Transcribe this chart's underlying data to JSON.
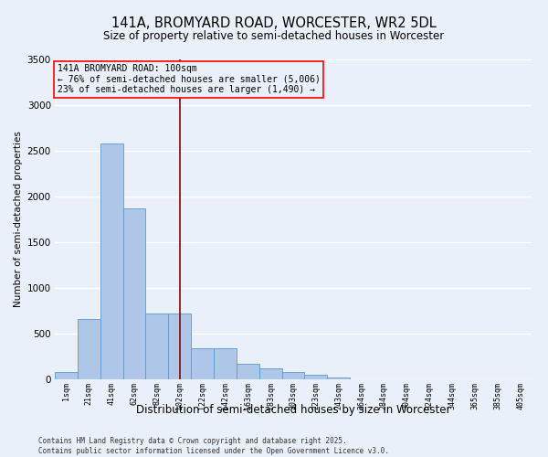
{
  "title": "141A, BROMYARD ROAD, WORCESTER, WR2 5DL",
  "subtitle": "Size of property relative to semi-detached houses in Worcester",
  "xlabel": "Distribution of semi-detached houses by size in Worcester",
  "ylabel": "Number of semi-detached properties",
  "x_labels": [
    "1sqm",
    "21sqm",
    "41sqm",
    "62sqm",
    "82sqm",
    "102sqm",
    "122sqm",
    "142sqm",
    "163sqm",
    "183sqm",
    "203sqm",
    "223sqm",
    "243sqm",
    "264sqm",
    "284sqm",
    "304sqm",
    "324sqm",
    "344sqm",
    "365sqm",
    "385sqm",
    "405sqm"
  ],
  "bar_values": [
    80,
    660,
    2580,
    1870,
    720,
    720,
    340,
    340,
    170,
    120,
    80,
    50,
    20,
    5,
    5,
    0,
    5,
    0,
    0,
    0,
    0
  ],
  "bar_color": "#aec6e8",
  "bar_edge_color": "#5b9bd5",
  "bar_alpha": 0.85,
  "ylim": [
    0,
    3500
  ],
  "yticks": [
    0,
    500,
    1000,
    1500,
    2000,
    2500,
    3000,
    3500
  ],
  "red_line_x": 5,
  "annotation_text": "141A BROMYARD ROAD: 100sqm\n← 76% of semi-detached houses are smaller (5,006)\n23% of semi-detached houses are larger (1,490) →",
  "annotation_fontsize": 7.0,
  "background_color": "#eaf0f9",
  "grid_color": "#ffffff",
  "footer_text": "Contains HM Land Registry data © Crown copyright and database right 2025.\nContains public sector information licensed under the Open Government Licence v3.0.",
  "title_fontsize": 10.5,
  "subtitle_fontsize": 8.5,
  "xlabel_fontsize": 8.5,
  "ylabel_fontsize": 7.5,
  "footer_fontsize": 5.5
}
